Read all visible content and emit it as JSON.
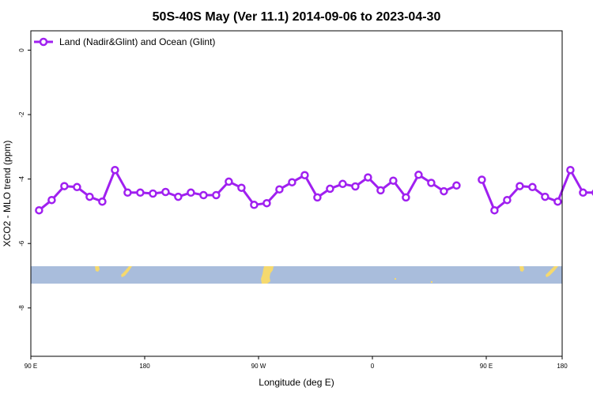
{
  "chart_data": {
    "type": "line",
    "title": "50S-40S May (Ver 11.1)   2014-09-06 to 2023-04-30",
    "xlabel": "Longitude (deg E)",
    "ylabel": "XCO2 - MLO trend (ppm)",
    "xlim": [
      90,
      510
    ],
    "ylim": [
      -9.5,
      0.6
    ],
    "xticks": [
      {
        "value": 90,
        "label": "90 E"
      },
      {
        "value": 180,
        "label": "180"
      },
      {
        "value": 270,
        "label": "90 W"
      },
      {
        "value": 360,
        "label": "0"
      },
      {
        "value": 450,
        "label": "90 E"
      },
      {
        "value": 540,
        "label": "180"
      }
    ],
    "yticks": [
      0,
      -2,
      -4,
      -6,
      -8
    ],
    "legend": {
      "position": "top-left"
    },
    "series": [
      {
        "name": "Land (Nadir&Glint) and Ocean (Glint)",
        "color": "#a020f0",
        "segments": [
          [
            [
              96.5,
              -4.97
            ],
            [
              106.5,
              -4.65
            ],
            [
              116.5,
              -4.22
            ],
            [
              126.5,
              -4.25
            ],
            [
              136.5,
              -4.55
            ],
            [
              146.5,
              -4.7
            ],
            [
              156.5,
              -3.72
            ],
            [
              166.5,
              -4.42
            ],
            [
              176.5,
              -4.42
            ],
            [
              186.5,
              -4.45
            ],
            [
              196.5,
              -4.4
            ],
            [
              206.5,
              -4.55
            ],
            [
              216.5,
              -4.42
            ],
            [
              226.5,
              -4.5
            ],
            [
              236.5,
              -4.5
            ],
            [
              246.5,
              -4.08
            ],
            [
              256.5,
              -4.27
            ],
            [
              266.5,
              -4.8
            ],
            [
              276.5,
              -4.75
            ],
            [
              286.5,
              -4.32
            ],
            [
              296.5,
              -4.1
            ],
            [
              306.5,
              -3.88
            ],
            [
              316.5,
              -4.57
            ],
            [
              326.5,
              -4.3
            ],
            [
              336.5,
              -4.15
            ],
            [
              346.5,
              -4.23
            ],
            [
              356.5,
              -3.95
            ],
            [
              366.5,
              -4.35
            ],
            [
              376.5,
              -4.05
            ],
            [
              386.5,
              -4.57
            ],
            [
              396.5,
              -3.87
            ],
            [
              406.5,
              -4.12
            ],
            [
              416.5,
              -4.38
            ],
            [
              426.5,
              -4.2
            ]
          ],
          [
            [
              446.5,
              -4.02
            ],
            [
              456.5,
              -4.97
            ],
            [
              466.5,
              -4.65
            ],
            [
              476.5,
              -4.22
            ],
            [
              486.5,
              -4.25
            ],
            [
              496.5,
              -4.55
            ],
            [
              506.5,
              -4.7
            ],
            [
              516.5,
              -3.72
            ],
            [
              526.5,
              -4.42
            ],
            [
              536.5,
              -4.42
            ]
          ]
        ]
      }
    ]
  }
}
